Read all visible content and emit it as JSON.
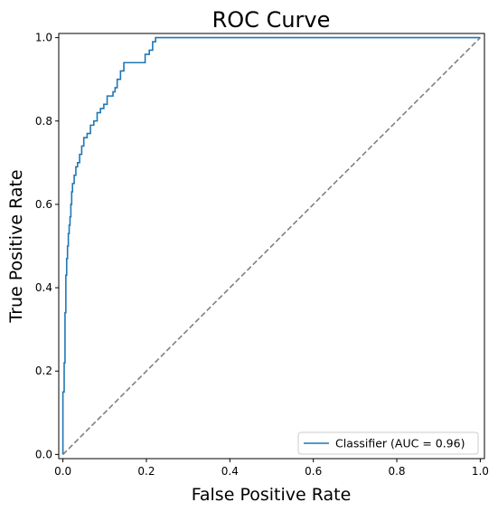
{
  "chart_data": {
    "type": "line",
    "title": "ROC Curve",
    "xlabel": "False Positive Rate",
    "ylabel": "True Positive Rate",
    "xlim": [
      -0.01,
      1.01
    ],
    "ylim": [
      -0.01,
      1.01
    ],
    "xticks": [
      "0.0",
      "0.2",
      "0.4",
      "0.6",
      "0.8",
      "1.0"
    ],
    "yticks": [
      "0.0",
      "0.2",
      "0.4",
      "0.6",
      "0.8",
      "1.0"
    ],
    "grid": false,
    "legend_position": "lower-right",
    "series": [
      {
        "name": "Classifier (AUC = 0.96)",
        "color": "#1f77b4",
        "style": "solid",
        "step": true,
        "x": [
          0.0,
          0.0,
          0.003,
          0.003,
          0.005,
          0.005,
          0.007,
          0.007,
          0.009,
          0.009,
          0.011,
          0.011,
          0.013,
          0.013,
          0.015,
          0.015,
          0.017,
          0.017,
          0.019,
          0.019,
          0.021,
          0.021,
          0.023,
          0.023,
          0.027,
          0.027,
          0.031,
          0.031,
          0.035,
          0.035,
          0.04,
          0.04,
          0.045,
          0.045,
          0.05,
          0.05,
          0.058,
          0.058,
          0.066,
          0.066,
          0.074,
          0.074,
          0.082,
          0.082,
          0.09,
          0.09,
          0.098,
          0.098,
          0.106,
          0.106,
          0.12,
          0.12,
          0.125,
          0.125,
          0.13,
          0.13,
          0.138,
          0.138,
          0.146,
          0.146,
          0.15,
          0.15,
          0.197,
          0.197,
          0.207,
          0.207,
          0.215,
          0.215,
          0.222,
          0.222,
          1.0
        ],
        "y": [
          0.0,
          0.15,
          0.15,
          0.22,
          0.22,
          0.34,
          0.34,
          0.43,
          0.43,
          0.47,
          0.47,
          0.5,
          0.5,
          0.53,
          0.53,
          0.55,
          0.55,
          0.57,
          0.57,
          0.6,
          0.6,
          0.63,
          0.63,
          0.65,
          0.65,
          0.67,
          0.67,
          0.69,
          0.69,
          0.7,
          0.7,
          0.72,
          0.72,
          0.74,
          0.74,
          0.76,
          0.76,
          0.77,
          0.77,
          0.79,
          0.79,
          0.8,
          0.8,
          0.82,
          0.82,
          0.83,
          0.83,
          0.84,
          0.84,
          0.86,
          0.86,
          0.87,
          0.87,
          0.88,
          0.88,
          0.9,
          0.9,
          0.92,
          0.92,
          0.94,
          0.94,
          0.94,
          0.94,
          0.96,
          0.96,
          0.97,
          0.97,
          0.99,
          0.99,
          1.0,
          1.0
        ]
      },
      {
        "name": "",
        "color": "#808080",
        "style": "dashed",
        "step": false,
        "x": [
          0.0,
          1.0
        ],
        "y": [
          0.0,
          1.0
        ]
      }
    ]
  }
}
